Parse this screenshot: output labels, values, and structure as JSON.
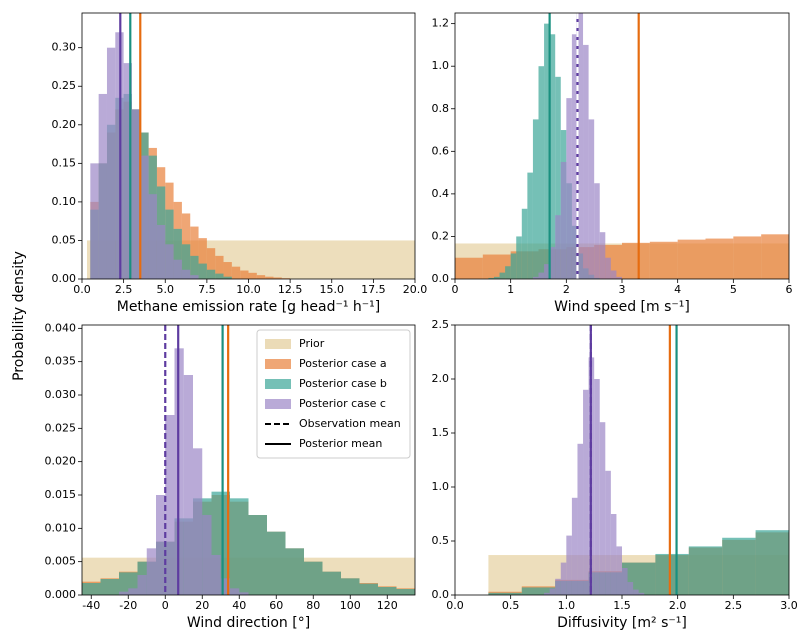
{
  "ylabel": "Probability density",
  "chart_data": [
    {
      "type": "histogram",
      "xlabel": "Methane emission rate [g head⁻¹ h⁻¹]",
      "xlim": [
        0,
        20
      ],
      "ylim": [
        0,
        0.345
      ],
      "xticks": [
        {
          "value": 0,
          "label": "0.0"
        },
        2.5,
        {
          "value": 5,
          "label": "5.0"
        },
        7.5,
        {
          "value": 10,
          "label": "10.0"
        },
        12.5,
        {
          "value": 15,
          "label": "15.0"
        },
        17.5,
        {
          "value": 20,
          "label": "20.0"
        }
      ],
      "yticks": [
        {
          "value": 0,
          "label": "0.00"
        },
        {
          "value": 0.05,
          "label": "0.05"
        },
        {
          "value": 0.1,
          "label": "0.10"
        },
        {
          "value": 0.15,
          "label": "0.15"
        },
        {
          "value": 0.2,
          "label": "0.20"
        },
        {
          "value": 0.25,
          "label": "0.25"
        },
        {
          "value": 0.3,
          "label": "0.30"
        }
      ],
      "series": [
        {
          "name": "Prior",
          "color": "#e3cc98",
          "bins": [
            0.3,
            20
          ],
          "values": [
            0.05
          ]
        },
        {
          "name": "Posterior case a",
          "color": "#e8803a",
          "bins": [
            0.5,
            1,
            1.5,
            2,
            2.5,
            3,
            3.5,
            4,
            4.5,
            5,
            5.5,
            6,
            6.5,
            7,
            7.5,
            8,
            8.5,
            9,
            9.5,
            10,
            10.5,
            11,
            11.5,
            12,
            12.5
          ],
          "values": [
            0.1,
            0.15,
            0.19,
            0.22,
            0.23,
            0.22,
            0.19,
            0.17,
            0.145,
            0.125,
            0.1,
            0.085,
            0.068,
            0.053,
            0.04,
            0.03,
            0.022,
            0.016,
            0.011,
            0.008,
            0.005,
            0.003,
            0.002,
            0.001
          ]
        },
        {
          "name": "Posterior case b",
          "color": "#3aa597",
          "bins": [
            0.5,
            1,
            1.5,
            2,
            2.5,
            3,
            3.5,
            4,
            4.5,
            5,
            5.5,
            6,
            6.5,
            7,
            7.5,
            8,
            8.5,
            9
          ],
          "values": [
            0.09,
            0.15,
            0.2,
            0.235,
            0.24,
            0.22,
            0.19,
            0.16,
            0.12,
            0.09,
            0.065,
            0.045,
            0.03,
            0.02,
            0.012,
            0.007,
            0.003
          ]
        },
        {
          "name": "Posterior case c",
          "color": "#9b86c6",
          "bins": [
            0.5,
            1,
            1.5,
            2,
            2.5,
            3,
            3.5,
            4,
            4.5,
            5,
            5.5,
            6,
            6.5,
            7
          ],
          "values": [
            0.15,
            0.24,
            0.3,
            0.32,
            0.28,
            0.22,
            0.16,
            0.11,
            0.07,
            0.045,
            0.025,
            0.012,
            0.005
          ]
        }
      ],
      "vlines": [
        {
          "x": 3.5,
          "color": "#e66c10",
          "dash": false
        },
        {
          "x": 2.9,
          "color": "#1a9080",
          "dash": false
        },
        {
          "x": 2.3,
          "color": "#5e3ca0",
          "dash": false
        }
      ]
    },
    {
      "type": "histogram",
      "xlabel": "Wind speed [m s⁻¹]",
      "xlim": [
        0,
        6
      ],
      "ylim": [
        0,
        1.25
      ],
      "xticks": [
        0,
        1,
        2,
        3,
        4,
        5,
        6
      ],
      "yticks": [
        {
          "value": 0,
          "label": "0.0"
        },
        0.2,
        0.4,
        0.6,
        0.8,
        {
          "value": 1,
          "label": "1.0"
        },
        1.2
      ],
      "series": [
        {
          "name": "Prior",
          "color": "#e3cc98",
          "bins": [
            0,
            6
          ],
          "values": [
            0.167
          ]
        },
        {
          "name": "Posterior case a",
          "color": "#e8803a",
          "bins": [
            0,
            0.5,
            1,
            1.5,
            2,
            2.5,
            3,
            3.5,
            4,
            4.5,
            5,
            5.5,
            6
          ],
          "values": [
            0.1,
            0.115,
            0.13,
            0.14,
            0.15,
            0.16,
            0.17,
            0.175,
            0.185,
            0.19,
            0.2,
            0.21
          ]
        },
        {
          "name": "Posterior case b",
          "color": "#3aa597",
          "bins": [
            0.6,
            0.7,
            0.8,
            0.9,
            1.0,
            1.1,
            1.2,
            1.3,
            1.4,
            1.5,
            1.6,
            1.7,
            1.8,
            1.9,
            2.0,
            2.1,
            2.2,
            2.3,
            2.4,
            2.5,
            2.6
          ],
          "values": [
            0.005,
            0.01,
            0.03,
            0.06,
            0.12,
            0.2,
            0.33,
            0.5,
            0.75,
            1.0,
            1.2,
            1.15,
            0.95,
            0.7,
            0.45,
            0.25,
            0.12,
            0.05,
            0.02,
            0.005
          ]
        },
        {
          "name": "Posterior case c",
          "color": "#9b86c6",
          "bins": [
            1.4,
            1.5,
            1.6,
            1.7,
            1.8,
            1.9,
            2.0,
            2.1,
            2.2,
            2.3,
            2.4,
            2.5,
            2.6,
            2.7,
            2.8,
            2.9,
            3.0
          ],
          "values": [
            0.01,
            0.03,
            0.07,
            0.15,
            0.3,
            0.55,
            0.85,
            1.15,
            1.25,
            1.1,
            0.75,
            0.45,
            0.22,
            0.1,
            0.04,
            0.01
          ]
        }
      ],
      "vlines": [
        {
          "x": 3.3,
          "color": "#e66c10",
          "dash": false
        },
        {
          "x": 1.7,
          "color": "#1a9080",
          "dash": false
        },
        {
          "x": 2.2,
          "color": "#5e3ca0",
          "dash": false
        },
        {
          "x": 2.2,
          "color": "#ffffff",
          "dash": true
        }
      ]
    },
    {
      "type": "histogram",
      "xlabel": "Wind direction [°]",
      "xlim": [
        -45,
        135
      ],
      "ylim": [
        0,
        0.0405
      ],
      "xticks": [
        -40,
        -20,
        0,
        20,
        40,
        60,
        80,
        100,
        120
      ],
      "yticks": [
        {
          "value": 0,
          "label": "0.000"
        },
        {
          "value": 0.005,
          "label": "0.005"
        },
        {
          "value": 0.01,
          "label": "0.010"
        },
        {
          "value": 0.015,
          "label": "0.015"
        },
        {
          "value": 0.02,
          "label": "0.020"
        },
        {
          "value": 0.025,
          "label": "0.025"
        },
        {
          "value": 0.03,
          "label": "0.030"
        },
        {
          "value": 0.035,
          "label": "0.035"
        },
        {
          "value": 0.04,
          "label": "0.040"
        }
      ],
      "series": [
        {
          "name": "Prior",
          "color": "#e3cc98",
          "bins": [
            -45,
            135
          ],
          "values": [
            0.0056
          ]
        },
        {
          "name": "Posterior case a",
          "color": "#e8803a",
          "bins": [
            -45,
            -35,
            -25,
            -15,
            -5,
            5,
            15,
            25,
            35,
            45,
            55,
            65,
            75,
            85,
            95,
            105,
            115,
            125,
            135
          ],
          "values": [
            0.002,
            0.0025,
            0.0035,
            0.005,
            0.008,
            0.011,
            0.014,
            0.015,
            0.014,
            0.012,
            0.0095,
            0.007,
            0.005,
            0.0035,
            0.0025,
            0.0018,
            0.0013,
            0.001
          ]
        },
        {
          "name": "Posterior case b",
          "color": "#3aa597",
          "bins": [
            -45,
            -35,
            -25,
            -15,
            -5,
            5,
            15,
            25,
            35,
            45,
            55,
            65,
            75,
            85,
            95,
            105,
            115,
            125,
            135
          ],
          "values": [
            0.0018,
            0.0024,
            0.0034,
            0.005,
            0.008,
            0.0115,
            0.0145,
            0.0155,
            0.0145,
            0.012,
            0.0095,
            0.007,
            0.005,
            0.0035,
            0.0025,
            0.0017,
            0.0012,
            0.0009
          ]
        },
        {
          "name": "Posterior case c",
          "color": "#9b86c6",
          "bins": [
            -25,
            -20,
            -15,
            -10,
            -5,
            0,
            5,
            10,
            15,
            20,
            25,
            30,
            35,
            40,
            45
          ],
          "values": [
            0.0005,
            0.001,
            0.003,
            0.007,
            0.015,
            0.027,
            0.037,
            0.033,
            0.022,
            0.012,
            0.006,
            0.0025,
            0.001,
            0.0004
          ]
        }
      ],
      "vlines": [
        {
          "x": 0,
          "color": "#5e3ca0",
          "dash": true
        },
        {
          "x": 7,
          "color": "#5e3ca0",
          "dash": false
        },
        {
          "x": 31,
          "color": "#1a9080",
          "dash": false
        },
        {
          "x": 34,
          "color": "#e66c10",
          "dash": false
        }
      ],
      "legend": "upper right",
      "line_styles": [
        {
          "name": "Observation mean",
          "dash": true
        },
        {
          "name": "Posterior mean",
          "dash": false
        }
      ]
    },
    {
      "type": "histogram",
      "xlabel": "Diffusivity [m² s⁻¹]",
      "xlim": [
        0,
        3
      ],
      "ylim": [
        0,
        2.5
      ],
      "xticks": [
        {
          "value": 0,
          "label": "0.0"
        },
        0.5,
        {
          "value": 1,
          "label": "1.0"
        },
        1.5,
        {
          "value": 2,
          "label": "2.0"
        },
        2.5,
        {
          "value": 3,
          "label": "3.0"
        }
      ],
      "yticks": [
        {
          "value": 0,
          "label": "0.0"
        },
        0.5,
        {
          "value": 1,
          "label": "1.0"
        },
        1.5,
        {
          "value": 2,
          "label": "2.0"
        },
        2.5
      ],
      "series": [
        {
          "name": "Prior",
          "color": "#e3cc98",
          "bins": [
            0.3,
            3.0
          ],
          "values": [
            0.37
          ]
        },
        {
          "name": "Posterior case a",
          "color": "#e8803a",
          "bins": [
            0.3,
            0.6,
            0.9,
            1.2,
            1.5,
            1.8,
            2.1,
            2.4,
            2.7,
            3.0
          ],
          "values": [
            0.03,
            0.08,
            0.14,
            0.22,
            0.3,
            0.37,
            0.44,
            0.51,
            0.58
          ]
        },
        {
          "name": "Posterior case b",
          "color": "#3aa597",
          "bins": [
            0.3,
            0.6,
            0.9,
            1.2,
            1.5,
            1.8,
            2.1,
            2.4,
            2.7,
            3.0
          ],
          "values": [
            0.02,
            0.07,
            0.13,
            0.21,
            0.3,
            0.38,
            0.45,
            0.53,
            0.6
          ]
        },
        {
          "name": "Posterior case c",
          "color": "#9b86c6",
          "bins": [
            0.8,
            0.85,
            0.9,
            0.95,
            1.0,
            1.05,
            1.1,
            1.15,
            1.2,
            1.25,
            1.3,
            1.35,
            1.4,
            1.45,
            1.5,
            1.55,
            1.6,
            1.65,
            1.7
          ],
          "values": [
            0.02,
            0.06,
            0.15,
            0.3,
            0.55,
            0.9,
            1.4,
            1.9,
            2.2,
            2.0,
            1.6,
            1.15,
            0.75,
            0.45,
            0.25,
            0.12,
            0.05,
            0.02
          ]
        }
      ],
      "vlines": [
        {
          "x": 1.22,
          "color": "#5e3ca0",
          "dash": false
        },
        {
          "x": 1.22,
          "color": "#5e3ca0",
          "dash": true
        },
        {
          "x": 1.93,
          "color": "#e66c10",
          "dash": false
        },
        {
          "x": 1.99,
          "color": "#1a9080",
          "dash": false
        }
      ]
    }
  ]
}
